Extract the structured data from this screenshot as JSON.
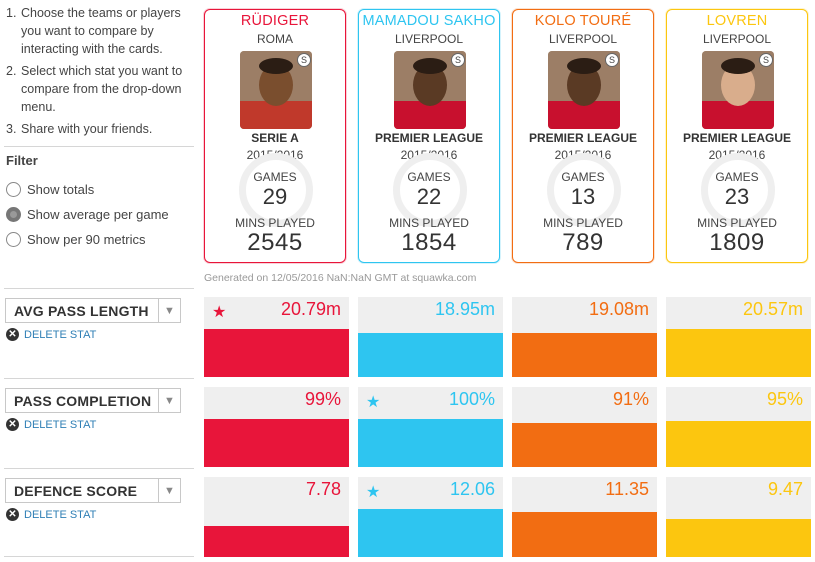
{
  "instructions": [
    {
      "num": "1.",
      "text": "Choose the teams or players you want to compare by interacting with the cards."
    },
    {
      "num": "2.",
      "text": "Select which stat you want to compare from the drop-down menu."
    },
    {
      "num": "3.",
      "text": "Share with your friends."
    }
  ],
  "filter": {
    "title": "Filter",
    "options": [
      {
        "label": "Show totals",
        "checked": false
      },
      {
        "label": "Show average per game",
        "checked": true
      },
      {
        "label": "Show per 90 metrics",
        "checked": false
      }
    ]
  },
  "players": [
    {
      "name": "RÜDIGER",
      "club": "ROMA",
      "league": "SERIE A",
      "season": "2015/2016",
      "games_label": "GAMES",
      "games": "29",
      "mins_label": "MINS PLAYED",
      "mins": "2545",
      "color": "#e8153a",
      "badge_icon": "squawka-logo-icon"
    },
    {
      "name": "MAMADOU SAKHO",
      "club": "LIVERPOOL",
      "league": "PREMIER LEAGUE",
      "season": "2015/2016",
      "games_label": "GAMES",
      "games": "22",
      "mins_label": "MINS PLAYED",
      "mins": "1854",
      "color": "#2ec5f0",
      "badge_icon": "squawka-logo-icon"
    },
    {
      "name": "KOLO TOURÉ",
      "club": "LIVERPOOL",
      "league": "PREMIER LEAGUE",
      "season": "2015/2016",
      "games_label": "GAMES",
      "games": "13",
      "mins_label": "MINS PLAYED",
      "mins": "789",
      "color": "#f26d12",
      "badge_icon": "squawka-logo-icon"
    },
    {
      "name": "LOVREN",
      "club": "LIVERPOOL",
      "league": "PREMIER LEAGUE",
      "season": "2015/2016",
      "games_label": "GAMES",
      "games": "23",
      "mins_label": "MINS PLAYED",
      "mins": "1809",
      "color": "#fcc60f",
      "badge_icon": "squawka-logo-icon"
    }
  ],
  "generated_text": "Generated on 12/05/2016 NaN:NaN GMT at squawka.com",
  "stats": [
    {
      "label": "AVG PASS LENGTH",
      "delete_label": "DELETE STAT",
      "values": [
        "20.79m",
        "18.95m",
        "19.08m",
        "20.57m"
      ],
      "fill": [
        1.0,
        0.91,
        0.92,
        0.99
      ],
      "star_index": 0
    },
    {
      "label": "PASS COMPLETION",
      "delete_label": "DELETE STAT",
      "values": [
        "99%",
        "100%",
        "91%",
        "95%"
      ],
      "fill": [
        0.99,
        1.0,
        0.91,
        0.95
      ],
      "star_index": 1
    },
    {
      "label": "DEFENCE SCORE",
      "delete_label": "DELETE STAT",
      "values": [
        "7.78",
        "12.06",
        "11.35",
        "9.47"
      ],
      "fill": [
        0.65,
        1.0,
        0.94,
        0.79
      ],
      "star_index": 1
    }
  ],
  "icons": {
    "star": "★",
    "dropdown": "▼",
    "delete": "✕"
  }
}
